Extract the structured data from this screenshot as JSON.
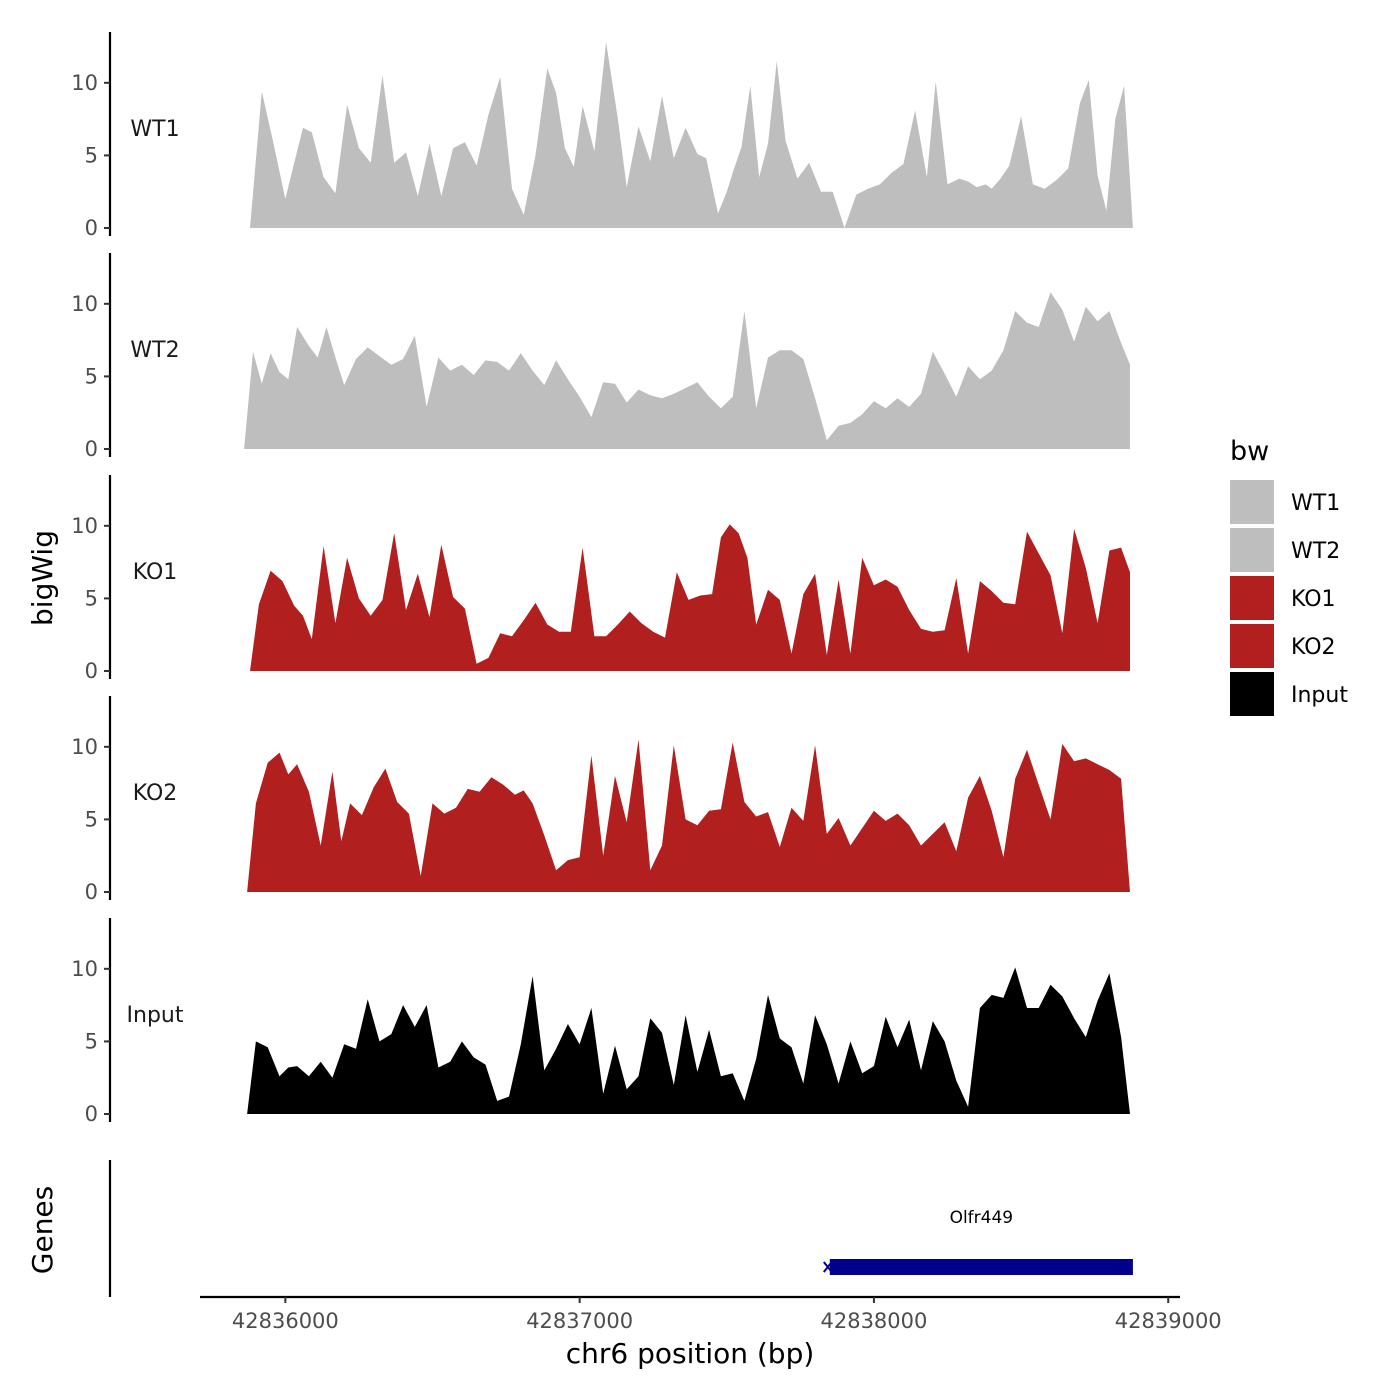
{
  "chart_data": {
    "type": "area",
    "chromosome": "chr6",
    "xlabel": "chr6 position (bp)",
    "ylabel": "bigWig",
    "genes_label": "Genes",
    "xlim": [
      42835710,
      42839040
    ],
    "xticks": [
      42836000,
      42837000,
      42838000,
      42839000
    ],
    "ylim": [
      0,
      13.5
    ],
    "yticks": [
      0,
      5,
      10
    ],
    "legend": {
      "title": "bw",
      "position": "right",
      "items": [
        {
          "label": "WT1",
          "color": "#bebebe"
        },
        {
          "label": "WT2",
          "color": "#bebebe"
        },
        {
          "label": "KO1",
          "color": "#b21f1f"
        },
        {
          "label": "KO2",
          "color": "#b21f1f"
        },
        {
          "label": "Input",
          "color": "#000000"
        }
      ]
    },
    "series": [
      {
        "name": "WT1",
        "color": "#bebebe",
        "x": [
          42835880,
          42835920,
          42835960,
          42836000,
          42836030,
          42836060,
          42836090,
          42836130,
          42836170,
          42836210,
          42836250,
          42836290,
          42836330,
          42836370,
          42836410,
          42836450,
          42836490,
          42836530,
          42836570,
          42836610,
          42836650,
          42836690,
          42836730,
          42836770,
          42836810,
          42836850,
          42836890,
          42836920,
          42836950,
          42836980,
          42837010,
          42837050,
          42837090,
          42837130,
          42837160,
          42837200,
          42837240,
          42837280,
          42837320,
          42837360,
          42837400,
          42837430,
          42837470,
          42837500,
          42837520,
          42837550,
          42837580,
          42837610,
          42837640,
          42837670,
          42837700,
          42837740,
          42837780,
          42837820,
          42837860,
          42837900,
          42837940,
          42837980,
          42838020,
          42838060,
          42838100,
          42838140,
          42838180,
          42838210,
          42838250,
          42838290,
          42838320,
          42838350,
          42838380,
          42838400,
          42838430,
          42838460,
          42838500,
          42838540,
          42838580,
          42838620,
          42838660,
          42838700,
          42838730,
          42838760,
          42838790,
          42838820,
          42838850,
          42838880
        ],
        "values": [
          0,
          9.4,
          5.8,
          2,
          4.5,
          6.9,
          6.6,
          3.5,
          2.4,
          8.5,
          5.5,
          4.5,
          10.5,
          4.5,
          5.2,
          2.2,
          5.8,
          2.2,
          5.5,
          5.9,
          4.3,
          7.8,
          10.4,
          2.7,
          0.9,
          5,
          11,
          9.3,
          5.5,
          4.2,
          8.4,
          5.3,
          12.8,
          7.5,
          2.8,
          7,
          4.6,
          9.1,
          4.8,
          6.9,
          5.1,
          4.8,
          1,
          2.5,
          3.8,
          5.6,
          9.8,
          3.5,
          5.8,
          11.5,
          6,
          3.4,
          4.5,
          2.5,
          2.5,
          0,
          2.3,
          2.7,
          3,
          3.8,
          4.4,
          8.1,
          3.5,
          10.1,
          3,
          3.4,
          3.2,
          2.8,
          3,
          2.7,
          3.4,
          4.3,
          7.7,
          3,
          2.7,
          3.3,
          4.1,
          8.6,
          10.2,
          3.6,
          1.2,
          7.5,
          9.8,
          0
        ]
      },
      {
        "name": "WT2",
        "color": "#bebebe",
        "x": [
          42835860,
          42835890,
          42835920,
          42835950,
          42835980,
          42836010,
          42836040,
          42836080,
          42836110,
          42836140,
          42836170,
          42836200,
          42836240,
          42836280,
          42836320,
          42836360,
          42836400,
          42836440,
          42836480,
          42836520,
          42836560,
          42836600,
          42836640,
          42836680,
          42836720,
          42836760,
          42836800,
          42836840,
          42836880,
          42836920,
          42836960,
          42837000,
          42837040,
          42837080,
          42837120,
          42837160,
          42837200,
          42837240,
          42837280,
          42837320,
          42837360,
          42837400,
          42837440,
          42837480,
          42837520,
          42837560,
          42837600,
          42837640,
          42837680,
          42837720,
          42837760,
          42837800,
          42837840,
          42837880,
          42837920,
          42837960,
          42838000,
          42838040,
          42838080,
          42838120,
          42838160,
          42838200,
          42838240,
          42838280,
          42838320,
          42838360,
          42838400,
          42838440,
          42838480,
          42838520,
          42838560,
          42838600,
          42838640,
          42838680,
          42838720,
          42838760,
          42838800,
          42838840,
          42838870
        ],
        "values": [
          0,
          6.7,
          4.5,
          6.6,
          5.3,
          4.8,
          8.4,
          7.1,
          6.3,
          8.4,
          6.3,
          4.4,
          6.2,
          7,
          6.4,
          5.8,
          6.2,
          7.8,
          2.9,
          6.3,
          5.4,
          5.8,
          5.1,
          6.1,
          6,
          5.4,
          6.6,
          5.4,
          4.4,
          6.1,
          4.8,
          3.6,
          2.2,
          4.6,
          4.5,
          3.2,
          4.1,
          3.7,
          3.5,
          3.8,
          4.2,
          4.6,
          3.6,
          2.8,
          3.6,
          9.5,
          2.8,
          6.3,
          6.8,
          6.8,
          6.2,
          3.5,
          0.6,
          1.6,
          1.8,
          2.4,
          3.3,
          2.8,
          3.5,
          2.9,
          3.8,
          6.7,
          5.2,
          3.6,
          5.7,
          4.8,
          5.4,
          6.8,
          9.5,
          8.7,
          8.4,
          10.8,
          9.6,
          7.4,
          9.8,
          8.8,
          9.5,
          7.3,
          5.8
        ]
      },
      {
        "name": "KO1",
        "color": "#b21f1f",
        "x": [
          42835880,
          42835910,
          42835950,
          42835990,
          42836030,
          42836060,
          42836090,
          42836130,
          42836170,
          42836210,
          42836250,
          42836290,
          42836330,
          42836370,
          42836410,
          42836450,
          42836490,
          42836530,
          42836570,
          42836610,
          42836650,
          42836690,
          42836730,
          42836770,
          42836810,
          42836850,
          42836890,
          42836930,
          42836970,
          42837010,
          42837050,
          42837090,
          42837130,
          42837170,
          42837210,
          42837250,
          42837290,
          42837330,
          42837370,
          42837410,
          42837450,
          42837480,
          42837510,
          42837540,
          42837570,
          42837600,
          42837640,
          42837680,
          42837720,
          42837760,
          42837800,
          42837840,
          42837880,
          42837920,
          42837960,
          42838000,
          42838040,
          42838080,
          42838120,
          42838160,
          42838200,
          42838240,
          42838280,
          42838320,
          42838360,
          42838400,
          42838440,
          42838480,
          42838520,
          42838560,
          42838600,
          42838640,
          42838680,
          42838720,
          42838760,
          42838800,
          42838840,
          42838870
        ],
        "values": [
          0,
          4.6,
          6.9,
          6.2,
          4.5,
          3.8,
          2.2,
          8.6,
          3.3,
          7.8,
          5,
          3.8,
          4.9,
          9.5,
          4.2,
          6.7,
          3.7,
          8.7,
          5.1,
          4.3,
          0.5,
          0.9,
          2.6,
          2.4,
          3.5,
          4.7,
          3.2,
          2.7,
          2.7,
          8.5,
          2.4,
          2.4,
          3.2,
          4.1,
          3.3,
          2.7,
          2.3,
          6.8,
          4.9,
          5.2,
          5.3,
          9.2,
          10.1,
          9.5,
          7.8,
          3.2,
          5.6,
          4.9,
          1.2,
          5.3,
          6.7,
          1.1,
          6.3,
          1.2,
          7.8,
          5.9,
          6.3,
          5.8,
          4.2,
          2.9,
          2.7,
          2.8,
          6.4,
          1.2,
          6.2,
          5.5,
          4.7,
          4.6,
          9.6,
          8.1,
          6.6,
          2.6,
          9.8,
          7.1,
          3.3,
          8.3,
          8.5,
          6.8
        ]
      },
      {
        "name": "KO2",
        "color": "#b21f1f",
        "x": [
          42835870,
          42835900,
          42835940,
          42835980,
          42836010,
          42836040,
          42836080,
          42836120,
          42836160,
          42836190,
          42836220,
          42836260,
          42836300,
          42836340,
          42836380,
          42836420,
          42836460,
          42836500,
          42836540,
          42836580,
          42836620,
          42836660,
          42836700,
          42836740,
          42836780,
          42836810,
          42836840,
          42836880,
          42836920,
          42836960,
          42837000,
          42837040,
          42837080,
          42837120,
          42837160,
          42837200,
          42837240,
          42837280,
          42837320,
          42837360,
          42837400,
          42837440,
          42837480,
          42837520,
          42837560,
          42837600,
          42837640,
          42837680,
          42837720,
          42837760,
          42837800,
          42837840,
          42837880,
          42837920,
          42837960,
          42838000,
          42838040,
          42838080,
          42838120,
          42838160,
          42838200,
          42838240,
          42838280,
          42838320,
          42838360,
          42838400,
          42838440,
          42838480,
          42838520,
          42838560,
          42838600,
          42838640,
          42838680,
          42838720,
          42838760,
          42838800,
          42838840,
          42838870
        ],
        "values": [
          0,
          6.1,
          8.9,
          9.6,
          8.1,
          8.8,
          6.9,
          3.2,
          8.3,
          3.5,
          6.1,
          5.3,
          7.2,
          8.5,
          6.2,
          5.4,
          1.1,
          6.1,
          5.4,
          5.8,
          7.1,
          6.9,
          7.9,
          7.4,
          6.7,
          7,
          6.1,
          3.9,
          1.5,
          2.2,
          2.4,
          9.4,
          2.5,
          8,
          4.8,
          10.5,
          1.5,
          3.2,
          10.1,
          5,
          4.6,
          5.6,
          5.7,
          10.3,
          6.2,
          5.2,
          5.5,
          3.1,
          5.8,
          4.9,
          10.1,
          4,
          5.1,
          3.2,
          4.4,
          5.6,
          4.9,
          5.4,
          4.6,
          3.2,
          4,
          4.8,
          2.8,
          6.5,
          8,
          5.6,
          2.4,
          7.8,
          9.8,
          7.4,
          5,
          10.2,
          9,
          9.2,
          8.8,
          8.4,
          7.8,
          0
        ]
      },
      {
        "name": "Input",
        "color": "#000000",
        "x": [
          42835870,
          42835900,
          42835940,
          42835980,
          42836010,
          42836040,
          42836080,
          42836120,
          42836160,
          42836200,
          42836240,
          42836280,
          42836320,
          42836360,
          42836400,
          42836440,
          42836480,
          42836520,
          42836560,
          42836600,
          42836640,
          42836680,
          42836720,
          42836760,
          42836800,
          42836840,
          42836880,
          42836920,
          42836960,
          42837000,
          42837040,
          42837080,
          42837120,
          42837160,
          42837200,
          42837240,
          42837280,
          42837320,
          42837360,
          42837400,
          42837440,
          42837480,
          42837520,
          42837560,
          42837600,
          42837640,
          42837680,
          42837720,
          42837760,
          42837800,
          42837840,
          42837880,
          42837920,
          42837960,
          42838000,
          42838040,
          42838080,
          42838120,
          42838160,
          42838200,
          42838240,
          42838280,
          42838320,
          42838360,
          42838400,
          42838440,
          42838480,
          42838520,
          42838560,
          42838600,
          42838640,
          42838680,
          42838720,
          42838760,
          42838800,
          42838840,
          42838870
        ],
        "values": [
          0,
          5,
          4.6,
          2.6,
          3.2,
          3.3,
          2.6,
          3.6,
          2.5,
          4.8,
          4.5,
          7.9,
          5,
          5.5,
          7.5,
          6,
          7.5,
          3.2,
          3.6,
          5,
          3.9,
          3.4,
          0.9,
          1.2,
          4.8,
          9.5,
          3,
          4.5,
          6.2,
          4.8,
          7.3,
          1.4,
          4.7,
          1.7,
          2.6,
          6.6,
          5.6,
          2,
          6.8,
          2.9,
          5.8,
          2.6,
          2.8,
          0.9,
          3.8,
          8.2,
          5.2,
          4.6,
          2.1,
          6.8,
          4.8,
          2.1,
          5,
          2.8,
          3.3,
          6.7,
          4.6,
          6.5,
          3,
          6.4,
          5,
          2.3,
          0.5,
          7.3,
          8.2,
          8,
          10.1,
          7.3,
          7.3,
          8.9,
          8.1,
          6.6,
          5.3,
          7.8,
          9.7,
          5.3,
          0
        ]
      }
    ],
    "genes": [
      {
        "name": "Olfr449",
        "start": 42837850,
        "end": 42838880,
        "strand": "+",
        "color": "#00008b"
      }
    ]
  }
}
